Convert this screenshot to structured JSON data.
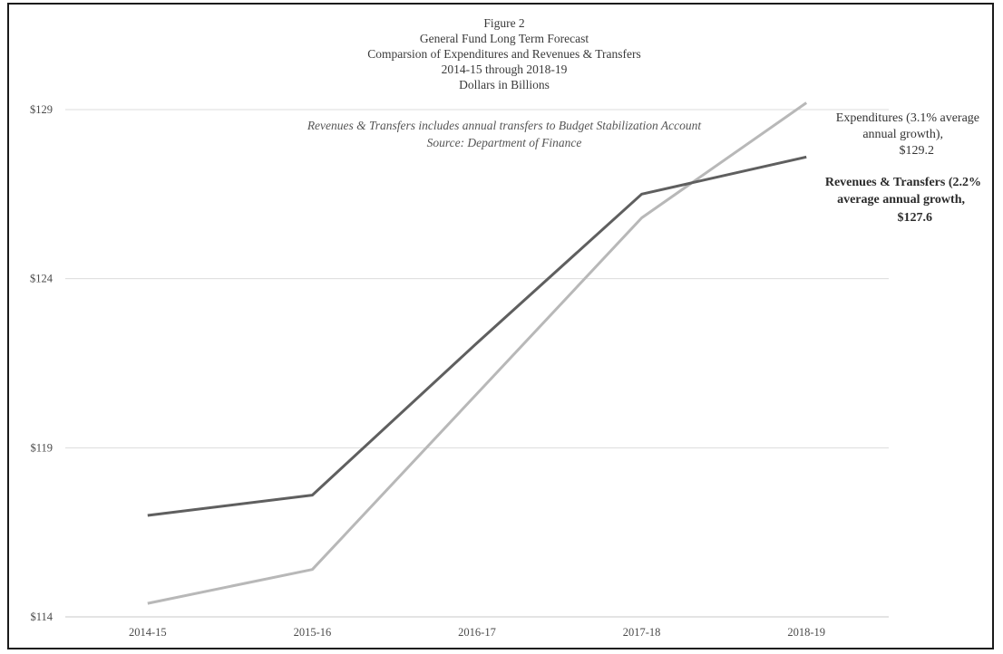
{
  "chart_data": {
    "type": "line",
    "title_lines": [
      "Figure 2",
      "General Fund Long Term Forecast",
      "Comparsion of Expenditures and Revenues & Transfers",
      "2014-15 through 2018-19",
      "Dollars in Billions"
    ],
    "notes": [
      "Revenues & Transfers includes annual transfers to Budget Stabilization Account",
      "Source:  Department of Finance"
    ],
    "categories": [
      "2014-15",
      "2015-16",
      "2016-17",
      "2017-18",
      "2018-19"
    ],
    "y_ticks": [
      {
        "value": 114,
        "label": "$114"
      },
      {
        "value": 119,
        "label": "$119"
      },
      {
        "value": 124,
        "label": "$124"
      },
      {
        "value": 129,
        "label": "$129"
      }
    ],
    "ylim": [
      114,
      129
    ],
    "grid": true,
    "series": [
      {
        "name": "Revenues & Transfers",
        "color": "#5f5f5f",
        "values": [
          117.0,
          117.6,
          122.1,
          126.5,
          127.6
        ],
        "annotation_lines": [
          "Revenues & Transfers (2.2%",
          "average annual growth,",
          "$127.6"
        ]
      },
      {
        "name": "Expenditures",
        "color": "#b8b8b8",
        "values": [
          114.4,
          115.4,
          120.6,
          125.8,
          129.2
        ],
        "annotation_lines": [
          "Expenditures  (3.1% average",
          "annual growth),",
          "$129.2"
        ]
      }
    ]
  }
}
